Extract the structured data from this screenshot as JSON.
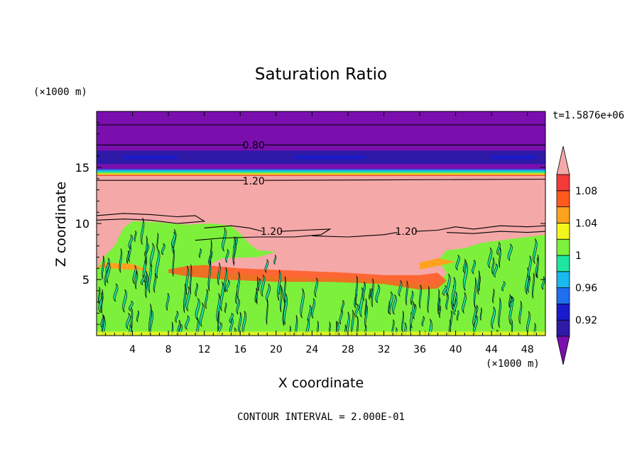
{
  "chart_data": {
    "type": "heatmap",
    "title": "Saturation Ratio",
    "xlabel": "X coordinate",
    "ylabel": "Z coordinate",
    "x_units": "(×1000 m)",
    "y_units": "(×1000 m)",
    "time_label": "t=1.5876e+06",
    "footer": "CONTOUR INTERVAL = 2.000E-01",
    "xlim": [
      0,
      50
    ],
    "ylim": [
      0,
      20
    ],
    "x_ticks": [
      "4",
      "8",
      "12",
      "16",
      "20",
      "24",
      "28",
      "32",
      "36",
      "40",
      "44",
      "48"
    ],
    "y_ticks": [
      "5",
      "10",
      "15"
    ],
    "contour_labels": [
      {
        "text": "0.80",
        "x": 17.5,
        "z": 17.0
      },
      {
        "text": "1.20",
        "x": 17.5,
        "z": 13.8
      },
      {
        "text": "1.20",
        "x": 19.5,
        "z": 9.3
      },
      {
        "text": "1.20",
        "x": 34.5,
        "z": 9.3
      }
    ],
    "colorbar": {
      "labels": [
        "1.08",
        "1.04",
        "1",
        "0.96",
        "0.92"
      ],
      "levels": [
        0.9,
        0.92,
        0.94,
        0.96,
        0.98,
        1.0,
        1.02,
        1.04,
        1.06,
        1.08,
        1.1
      ],
      "colors": [
        "#7a0fae",
        "#2e1aa6",
        "#1a1acd",
        "#1f6ff0",
        "#1ab8f0",
        "#1ee6a0",
        "#7df03c",
        "#f5f51e",
        "#ffa21e",
        "#ff5a1e",
        "#f53a3a",
        "#f5a8a8"
      ]
    },
    "colors": {
      "above": "#f5a8a8",
      "below": "#7a0fae",
      "dark_band": "#2e1aa6",
      "cloud_green": "#7df03c",
      "cloud_teal": "#1ee6a0",
      "cloud_orange": "#ff5a1e"
    }
  }
}
